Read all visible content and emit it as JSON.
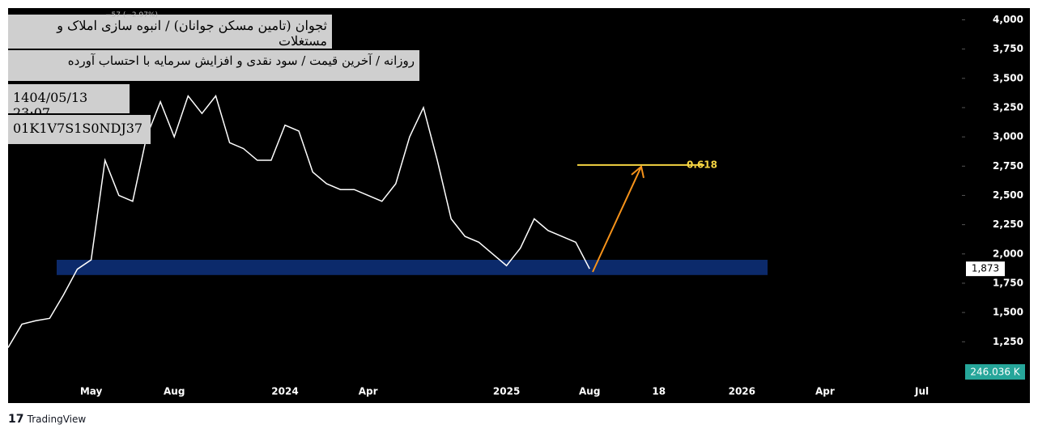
{
  "chart_data": {
    "type": "line",
    "title": "ثجوان (تامین مسکن جوانان) / انبوه سازی املاک و مستغلات",
    "subtitle": "روزانه / آخرین قیمت / سود نقدی و افزایش سرمایه با احتساب آورده",
    "date": "1404/05/13 23:07",
    "id": "01K1V7S1S0NDJ37",
    "legend_change": "−57 (−2.97%)",
    "brand": "TradingView",
    "categories": [
      null,
      null,
      null,
      null,
      null,
      null,
      "May",
      null,
      null,
      null,
      null,
      null,
      "Aug",
      null,
      null,
      null,
      null,
      null,
      null,
      null,
      "2024",
      null,
      null,
      null,
      null,
      null,
      "Apr",
      null,
      null,
      null,
      null,
      null,
      null,
      null,
      null,
      null,
      "2025",
      null,
      null,
      null,
      null,
      null,
      "Aug",
      null,
      null,
      null,
      null,
      "18",
      null,
      null,
      null,
      null,
      null,
      "2026",
      null,
      null,
      null,
      null,
      null,
      "Apr",
      null,
      null,
      null,
      null,
      null,
      null,
      "Jul",
      null
    ],
    "series": [
      {
        "name": "ثجوان",
        "color": "#ffffff",
        "values": [
          1200,
          1400,
          1430,
          1450,
          1650,
          1870,
          1950,
          2800,
          2500,
          2450,
          3000,
          3300,
          3000,
          3350,
          3200,
          3350,
          2950,
          2900,
          2800,
          2800,
          3100,
          3050,
          2700,
          2600,
          2550,
          2550,
          2500,
          2450,
          2600,
          3000,
          3250,
          2800,
          2300,
          2150,
          2100,
          2000,
          1900,
          2050,
          2300,
          2200,
          2150,
          2100,
          1873,
          null,
          null,
          null,
          null,
          null,
          null,
          null,
          null,
          null,
          null,
          null,
          null,
          null,
          null,
          null,
          null,
          null,
          null,
          null,
          null,
          null,
          null,
          null,
          null,
          null
        ]
      }
    ],
    "ylim": [
      920,
      4100
    ],
    "yticks": [
      {
        "value": 1250,
        "label": "1,250"
      },
      {
        "value": 1500,
        "label": "1,500"
      },
      {
        "value": 1750,
        "label": "1,750"
      },
      {
        "value": 2000,
        "label": "2,000"
      },
      {
        "value": 2250,
        "label": "2,250"
      },
      {
        "value": 2500,
        "label": "2,500"
      },
      {
        "value": 2750,
        "label": "2,750"
      },
      {
        "value": 3000,
        "label": "3,000"
      },
      {
        "value": 3250,
        "label": "3,250"
      },
      {
        "value": 3500,
        "label": "3,500"
      },
      {
        "value": 3750,
        "label": "3,750"
      },
      {
        "value": 4000,
        "label": "4,000"
      }
    ],
    "last_price": {
      "value": 1873,
      "label": "1,873"
    },
    "volume_label": "246.036 K",
    "zone": [
      1820,
      1950
    ],
    "zone_color": "#0c2a6b",
    "fib": {
      "value": 2760,
      "label": "0.618",
      "color": "#f5d442"
    },
    "arrow_color": "#f7931a"
  }
}
